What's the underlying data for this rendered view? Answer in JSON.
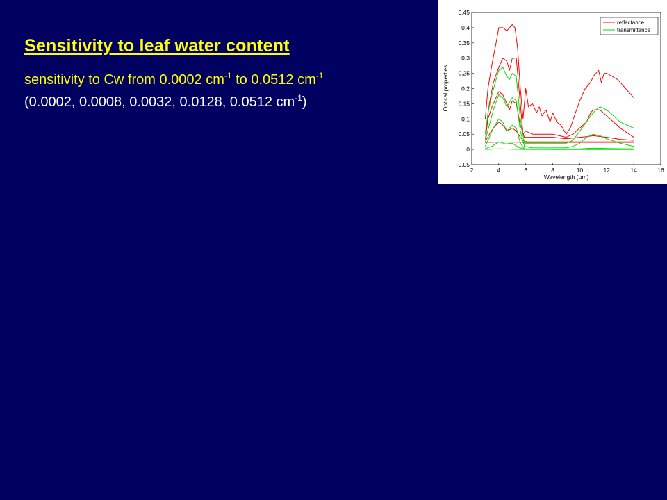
{
  "slide": {
    "title": "Sensitivity to leaf water content",
    "line1": {
      "prefix": "sensitivity to Cw from 0.0002  cm",
      "exp1": "-1",
      "mid": " to 0.0512  cm",
      "exp2": "-1"
    },
    "line2": {
      "prefix": "(0.0002, 0.0008, 0.0032, 0.0128, 0.0512 cm",
      "exp": "-1",
      "suffix": ")"
    },
    "colors": {
      "background": "#000060",
      "highlight": "#ffff00",
      "text": "#ffffff"
    }
  },
  "chart_data": {
    "type": "line",
    "xlabel": "Wavelength (µm)",
    "ylabel": "Optical properties",
    "xlim": [
      2,
      16
    ],
    "ylim": [
      -0.05,
      0.45
    ],
    "xticks": [
      2,
      4,
      6,
      8,
      10,
      12,
      14,
      16
    ],
    "yticks": [
      -0.05,
      0,
      0.05,
      0.1,
      0.15,
      0.2,
      0.25,
      0.3,
      0.35,
      0.4,
      0.45
    ],
    "ytick_labels": [
      "-0.05",
      "0",
      "0.05",
      "0.1",
      "0.15",
      "0.2",
      "0.25",
      "0.3",
      "0.35",
      "0.4",
      "0.45"
    ],
    "legend": {
      "placement": "top-right",
      "entries": [
        {
          "label": "reflectance",
          "color": "#ff0000"
        },
        {
          "label": "transmittance",
          "color": "#00dd00"
        }
      ]
    },
    "series": [
      {
        "group": "reflectance",
        "color": "#ff0000",
        "x": [
          3.0,
          3.2,
          3.5,
          3.8,
          4.0,
          4.3,
          4.6,
          4.8,
          5.0,
          5.2,
          5.4,
          5.6,
          5.8,
          6.0,
          6.2,
          6.5,
          6.8,
          7.0,
          7.2,
          7.5,
          7.8,
          8.0,
          8.3,
          8.6,
          9.0,
          9.3,
          9.6,
          10.0,
          10.4,
          10.8,
          11.0,
          11.2,
          11.4,
          11.6,
          11.8,
          12.0,
          12.4,
          12.8,
          13.2,
          13.6,
          14.0
        ],
        "y": [
          0.1,
          0.2,
          0.28,
          0.35,
          0.4,
          0.4,
          0.39,
          0.4,
          0.41,
          0.4,
          0.33,
          0.2,
          0.1,
          0.2,
          0.14,
          0.15,
          0.12,
          0.14,
          0.11,
          0.13,
          0.09,
          0.12,
          0.09,
          0.08,
          0.05,
          0.07,
          0.11,
          0.16,
          0.2,
          0.22,
          0.24,
          0.25,
          0.26,
          0.22,
          0.25,
          0.25,
          0.24,
          0.23,
          0.21,
          0.19,
          0.17
        ]
      },
      {
        "group": "reflectance",
        "color": "#ff0000",
        "x": [
          3.0,
          3.3,
          3.6,
          4.0,
          4.3,
          4.6,
          4.8,
          5.0,
          5.3,
          5.6,
          5.8,
          6.0,
          6.5,
          7.0,
          8.0,
          9.0,
          9.5,
          10.0,
          10.5,
          10.8,
          11.0,
          11.5,
          12.0,
          13.0,
          14.0
        ],
        "y": [
          0.05,
          0.15,
          0.22,
          0.27,
          0.3,
          0.29,
          0.26,
          0.3,
          0.3,
          0.15,
          0.05,
          0.06,
          0.05,
          0.05,
          0.05,
          0.04,
          0.05,
          0.07,
          0.09,
          0.12,
          0.13,
          0.13,
          0.11,
          0.07,
          0.04
        ]
      },
      {
        "group": "reflectance",
        "color": "#ff0000",
        "x": [
          3.0,
          3.2,
          3.5,
          3.8,
          4.0,
          4.3,
          4.6,
          4.8,
          5.0,
          5.3,
          5.6,
          5.9,
          6.2,
          7.0,
          8.0,
          9.0,
          10.0,
          10.5,
          11.0,
          12.0,
          13.0,
          14.0
        ],
        "y": [
          0.03,
          0.1,
          0.14,
          0.17,
          0.19,
          0.18,
          0.15,
          0.13,
          0.16,
          0.15,
          0.08,
          0.04,
          0.04,
          0.04,
          0.04,
          0.035,
          0.04,
          0.042,
          0.045,
          0.04,
          0.033,
          0.03
        ]
      },
      {
        "group": "reflectance",
        "color": "#ff0000",
        "x": [
          3.0,
          3.3,
          3.6,
          4.0,
          4.3,
          4.6,
          5.0,
          5.3,
          5.6,
          5.9,
          6.2,
          7.0,
          8.0,
          9.0,
          10.0,
          11.0,
          12.0,
          13.0,
          14.0
        ],
        "y": [
          0.025,
          0.05,
          0.07,
          0.09,
          0.08,
          0.06,
          0.07,
          0.06,
          0.04,
          0.026,
          0.025,
          0.025,
          0.025,
          0.025,
          0.025,
          0.025,
          0.025,
          0.025,
          0.025
        ]
      },
      {
        "group": "reflectance",
        "color": "#ff0000",
        "x": [
          3.0,
          4.0,
          5.0,
          6.0,
          7.0,
          8.0,
          9.0,
          10.0,
          11.0,
          12.0,
          13.0,
          14.0
        ],
        "y": [
          0.023,
          0.024,
          0.024,
          0.023,
          0.023,
          0.023,
          0.023,
          0.023,
          0.023,
          0.023,
          0.023,
          0.023
        ]
      },
      {
        "group": "transmittance",
        "color": "#00dd00",
        "x": [
          3.0,
          3.2,
          3.5,
          3.8,
          4.0,
          4.3,
          4.6,
          4.8,
          5.0,
          5.3,
          5.6,
          5.9,
          6.2,
          6.8,
          7.5,
          8.0,
          8.5,
          9.0,
          9.5,
          10.0,
          10.5,
          10.8,
          11.0,
          11.2,
          11.5,
          12.0,
          12.5,
          13.0,
          13.5,
          14.0
        ],
        "y": [
          0.05,
          0.12,
          0.18,
          0.23,
          0.26,
          0.27,
          0.24,
          0.23,
          0.25,
          0.24,
          0.1,
          0.02,
          0.02,
          0.02,
          0.02,
          0.02,
          0.02,
          0.02,
          0.03,
          0.06,
          0.09,
          0.11,
          0.12,
          0.13,
          0.14,
          0.13,
          0.11,
          0.09,
          0.08,
          0.07
        ]
      },
      {
        "group": "transmittance",
        "color": "#00dd00",
        "x": [
          3.0,
          3.3,
          3.6,
          4.0,
          4.3,
          4.6,
          5.0,
          5.3,
          5.6,
          5.9,
          6.5,
          8.0,
          9.0,
          9.5,
          10.0,
          10.5,
          11.0,
          11.5,
          12.0,
          13.0,
          14.0
        ],
        "y": [
          0.03,
          0.08,
          0.13,
          0.18,
          0.17,
          0.14,
          0.17,
          0.16,
          0.06,
          0.01,
          0.005,
          0.005,
          0.005,
          0.01,
          0.02,
          0.04,
          0.05,
          0.045,
          0.035,
          0.02,
          0.01
        ]
      },
      {
        "group": "transmittance",
        "color": "#00dd00",
        "x": [
          3.0,
          3.3,
          3.6,
          4.0,
          4.3,
          4.6,
          5.0,
          5.3,
          5.6,
          5.9,
          7.0,
          10.0,
          11.0,
          12.0,
          14.0
        ],
        "y": [
          0.01,
          0.04,
          0.07,
          0.1,
          0.09,
          0.06,
          0.08,
          0.07,
          0.02,
          0.002,
          0.001,
          0.002,
          0.004,
          0.003,
          0.002
        ]
      },
      {
        "group": "transmittance",
        "color": "#00dd00",
        "x": [
          3.0,
          3.5,
          4.0,
          4.5,
          5.0,
          5.5,
          6.0,
          8.0,
          10.0,
          12.0,
          14.0
        ],
        "y": [
          0.003,
          0.01,
          0.025,
          0.018,
          0.02,
          0.006,
          0.001,
          0.0,
          0.0,
          0.0,
          0.0
        ]
      },
      {
        "group": "transmittance",
        "color": "#00dd00",
        "x": [
          3.0,
          4.0,
          5.0,
          6.0,
          8.0,
          10.0,
          12.0,
          14.0
        ],
        "y": [
          0.0,
          0.002,
          0.001,
          0.0,
          0.0,
          0.0,
          0.0,
          0.0
        ]
      }
    ]
  }
}
